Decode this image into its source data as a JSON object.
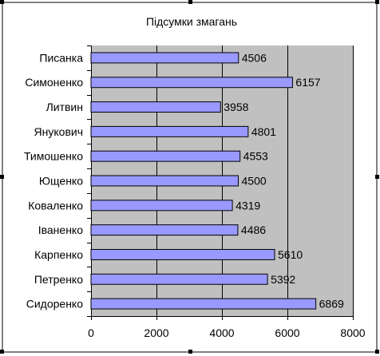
{
  "colors": {
    "plot_background": "#c0c0c0",
    "bar_fill": "#9999ff",
    "bar_stroke": "#000000",
    "gridline": "#000000",
    "chart_area_border": "#000000"
  },
  "chart_data": {
    "type": "bar",
    "orientation": "horizontal",
    "title": "Підсумки змагань",
    "xlabel": "",
    "ylabel": "",
    "categories": [
      "Сидоренко",
      "Петренко",
      "Карпенко",
      "Іваненко",
      "Коваленко",
      "Ющенко",
      "Тимошенко",
      "Янукович",
      "Литвин",
      "Симоненко",
      "Писанка"
    ],
    "values": [
      6869,
      5392,
      5610,
      4486,
      4319,
      4500,
      4553,
      4801,
      3958,
      6157,
      4506
    ],
    "xlim": [
      0,
      8000
    ],
    "xticks": [
      0,
      2000,
      4000,
      6000,
      8000
    ],
    "xtick_labels": [
      "0",
      "2000",
      "4000",
      "6000",
      "8000"
    ],
    "grid": "vertical",
    "legend": "none",
    "data_labels": true
  }
}
